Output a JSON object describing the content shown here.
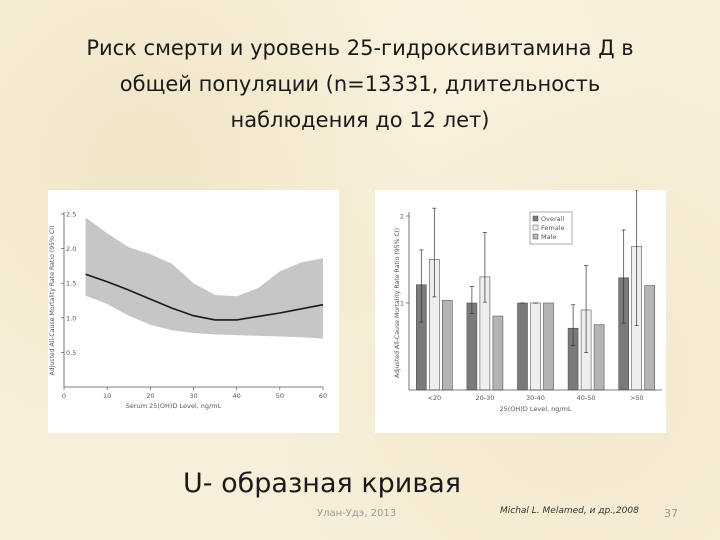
{
  "slide": {
    "title_lines": [
      "Риск смерти и уровень 25-гидроксивитамина Д в",
      "общей популяции (n=13331, длительность",
      "наблюдения до 12 лет)"
    ],
    "subtitle": "U- образная кривая",
    "footer_author": "Улан-Удэ, 2013",
    "footer_source": "Michal L. Melamed, и др.,2008",
    "slide_number": "37"
  },
  "chart_data": [
    {
      "type": "line",
      "xlabel": "Serum 25(OH)D Level, ng/mL",
      "ylabel": "Adjusted All-Cause Mortality Rate Ratio (95% CI)",
      "xlim": [
        0,
        60
      ],
      "ylim": [
        0,
        2.5
      ],
      "x_ticks": [
        "0",
        "10",
        "20",
        "30",
        "40",
        "50",
        "60"
      ],
      "y_ticks": [
        "0.5",
        "1.0",
        "1.5",
        "2.0",
        "2.5"
      ],
      "series": [
        {
          "x": [
            5,
            10,
            15,
            20,
            25,
            30,
            35,
            40,
            45,
            50,
            55,
            60
          ],
          "values": [
            1.63,
            1.52,
            1.4,
            1.27,
            1.14,
            1.03,
            0.97,
            0.97,
            1.02,
            1.07,
            1.13,
            1.19
          ],
          "lower": [
            1.32,
            1.2,
            1.03,
            0.9,
            0.82,
            0.78,
            0.76,
            0.75,
            0.74,
            0.73,
            0.72,
            0.7
          ],
          "upper": [
            2.45,
            2.22,
            2.02,
            1.92,
            1.78,
            1.5,
            1.33,
            1.31,
            1.43,
            1.67,
            1.8,
            1.86
          ]
        }
      ],
      "band_color": "#c6c6c6",
      "line_color": "#1a1a1a",
      "grid": false
    },
    {
      "type": "bar",
      "xlabel": "25(OH)D Level, ng/mL",
      "ylabel": "Adjusted All-Cause Mortality Rate Ratio (95% CI)",
      "categories": [
        "<20",
        "20-30",
        "30-40",
        "40-50",
        ">50"
      ],
      "y_ticks": [
        "1",
        "2"
      ],
      "ylim": [
        0,
        2
      ],
      "series": [
        {
          "name": "Overall",
          "color": "#7a7a7a",
          "values": [
            1.21,
            1.0,
            1.0,
            0.71,
            1.29
          ],
          "lower": [
            0.78,
            0.88,
            1.0,
            0.51,
            0.77
          ],
          "upper": [
            1.61,
            1.19,
            1.0,
            0.98,
            1.84
          ]
        },
        {
          "name": "Female",
          "color": "#eeeeee",
          "values": [
            1.5,
            1.3,
            1.0,
            0.92,
            1.65
          ],
          "lower": [
            1.07,
            1.01,
            1.0,
            0.43,
            0.74
          ],
          "upper": [
            2.09,
            1.81,
            1.0,
            1.43,
            2.3
          ]
        },
        {
          "name": "Male",
          "color": "#b4b4b4",
          "values": [
            1.03,
            0.85,
            1.0,
            0.75,
            1.2
          ],
          "lower": null,
          "upper": null
        }
      ],
      "legend_position": "top-right",
      "grid": false
    }
  ]
}
